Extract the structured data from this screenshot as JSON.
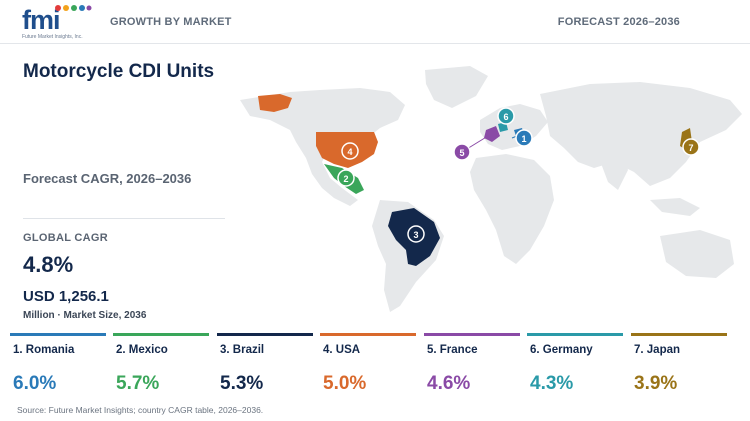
{
  "header": {
    "logo_text": "fmi",
    "logo_sub": "Future Market Insights, Inc.",
    "left_kicker": "GROWTH BY MARKET",
    "right_kicker": "FORECAST 2026–2036"
  },
  "panel": {
    "title": "Motorcycle CDI Units",
    "subtitle": "Forecast CAGR, 2026–2036",
    "global_label": "GLOBAL CAGR",
    "global_value": "4.8%",
    "market_size": "USD 1,256.1",
    "market_note": "Million · Market Size, 2036"
  },
  "countries": [
    {
      "rank": "1",
      "label": "1. Romania",
      "cagr": "6.0%",
      "color": "#2a7ab8"
    },
    {
      "rank": "2",
      "label": "2. Mexico",
      "cagr": "5.7%",
      "color": "#3aa65a"
    },
    {
      "rank": "3",
      "label": "3. Brazil",
      "cagr": "5.3%",
      "color": "#13284b"
    },
    {
      "rank": "4",
      "label": "4. USA",
      "cagr": "5.0%",
      "color": "#d9692c"
    },
    {
      "rank": "5",
      "label": "5. France",
      "cagr": "4.6%",
      "color": "#8a4aa6"
    },
    {
      "rank": "6",
      "label": "6. Germany",
      "cagr": "4.3%",
      "color": "#2a9aa8"
    },
    {
      "rank": "7",
      "label": "7. Japan",
      "cagr": "3.9%",
      "color": "#9a7418"
    }
  ],
  "source": "Source: Future Market Insights; country CAGR table, 2026–2036."
}
